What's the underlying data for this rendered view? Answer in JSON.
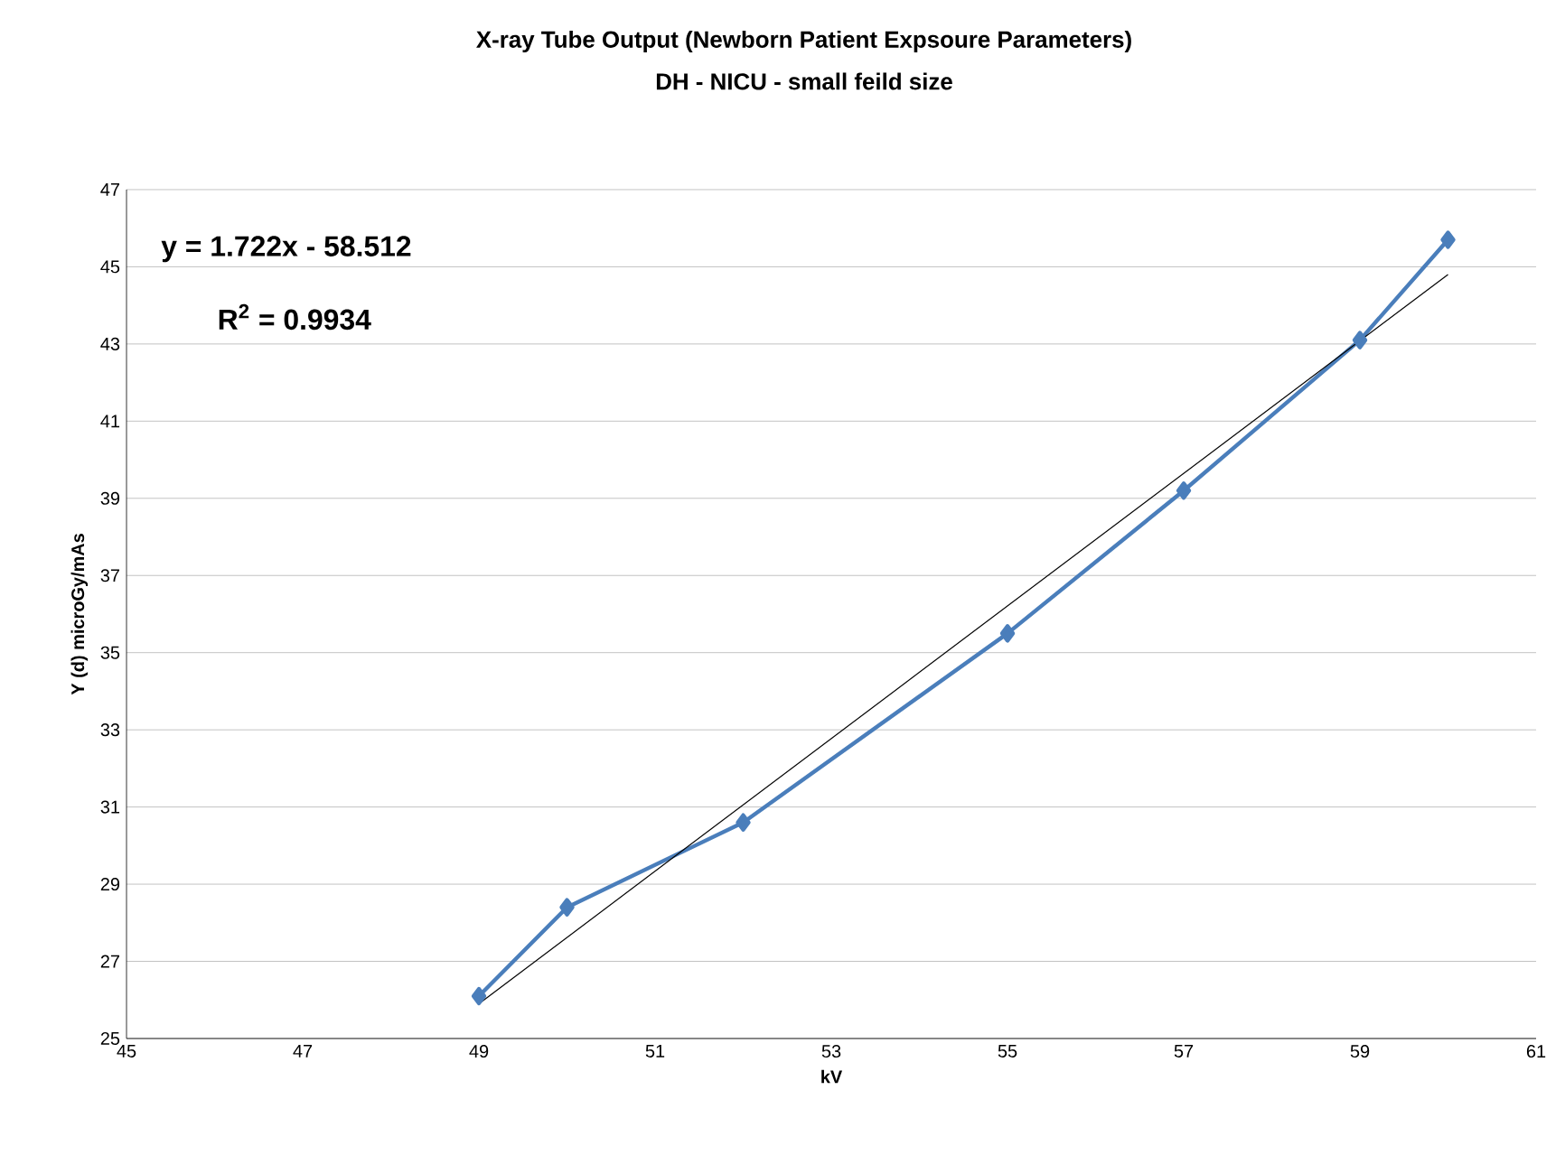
{
  "chart_data": {
    "type": "line",
    "title": "X-ray Tube Output (Newborn Patient Expsoure Parameters)",
    "subtitle": "DH - NICU - small feild size",
    "xlabel": "kV",
    "ylabel": "Y (d) microGy/mAs",
    "series": [
      {
        "color": "#4a7ebb",
        "x": [
          49,
          50,
          52,
          55,
          57,
          59,
          60
        ],
        "values": [
          26.1,
          28.4,
          30.6,
          35.5,
          39.2,
          43.1,
          45.7
        ],
        "marker": "diamond"
      },
      {
        "type": "line",
        "color": "#000000",
        "x": [
          49,
          60
        ],
        "values": [
          25.9,
          44.8
        ],
        "marker": "none"
      }
    ],
    "xlim": [
      45,
      61
    ],
    "xticks": [
      45,
      47,
      49,
      51,
      53,
      55,
      57,
      59,
      61
    ],
    "ylim": [
      25,
      47
    ],
    "yticks": [
      25,
      27,
      29,
      31,
      33,
      35,
      37,
      39,
      41,
      43,
      45,
      47
    ],
    "grid": "y",
    "annotations": [
      "y = 1.722x - 58.512",
      "R$^{2}$ = 0.9934"
    ]
  }
}
